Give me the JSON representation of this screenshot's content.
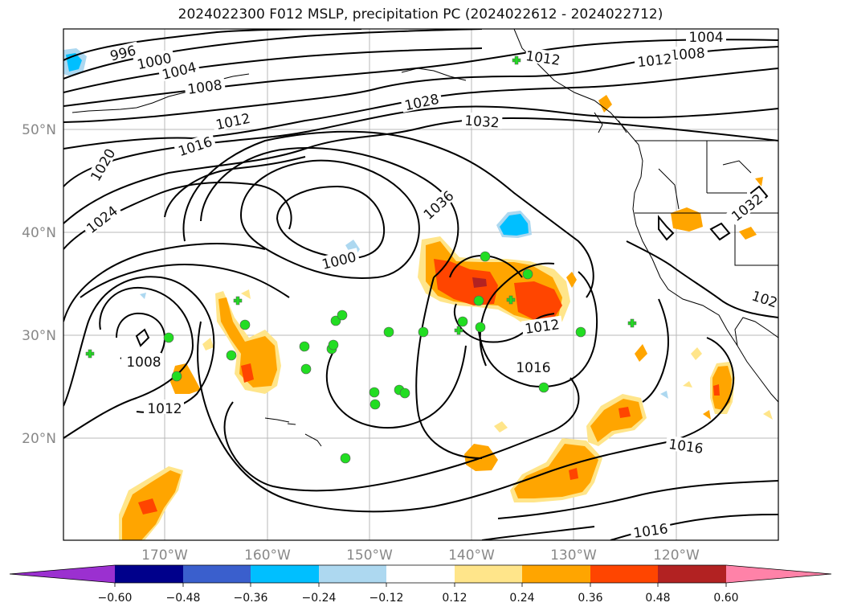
{
  "title": "2024022300 F012 MSLP, precipitation PC (2024022612 - 2024022712)",
  "lat_labels": [
    "50°N",
    "40°N",
    "30°N",
    "20°N"
  ],
  "lon_labels": [
    "170°W",
    "160°W",
    "150°W",
    "140°W",
    "130°W",
    "120°W"
  ],
  "isobar_labels": [
    "996",
    "1000",
    "1004",
    "1008",
    "1012",
    "1016",
    "1020",
    "1024",
    "1028",
    "1032",
    "1036",
    "1000",
    "1004",
    "1008",
    "1012",
    "1012",
    "1016",
    "1008",
    "1012",
    "1016",
    "1012",
    "1032",
    "102"
  ],
  "colorbar": {
    "tick_labels": [
      "−0.60",
      "−0.48",
      "−0.36",
      "−0.24",
      "−0.12",
      "0.12",
      "0.24",
      "0.36",
      "0.48",
      "0.60"
    ],
    "colors": [
      "#9b30d0",
      "#00008b",
      "#3a5fcd",
      "#00bfff",
      "#add8f0",
      "#ffffff",
      "#ffe58a",
      "#ffa500",
      "#ff4500",
      "#b22222",
      "#ff82a8"
    ]
  },
  "colors": {
    "positive_low": "#ffe58a",
    "positive_mid": "#ffa500",
    "positive_high": "#ff4500",
    "positive_max": "#b22222",
    "negative_low": "#add8f0",
    "negative_mid": "#00bfff",
    "station_marker": "#22dd22"
  },
  "legend": {
    "map_projection": "lat-lon"
  }
}
